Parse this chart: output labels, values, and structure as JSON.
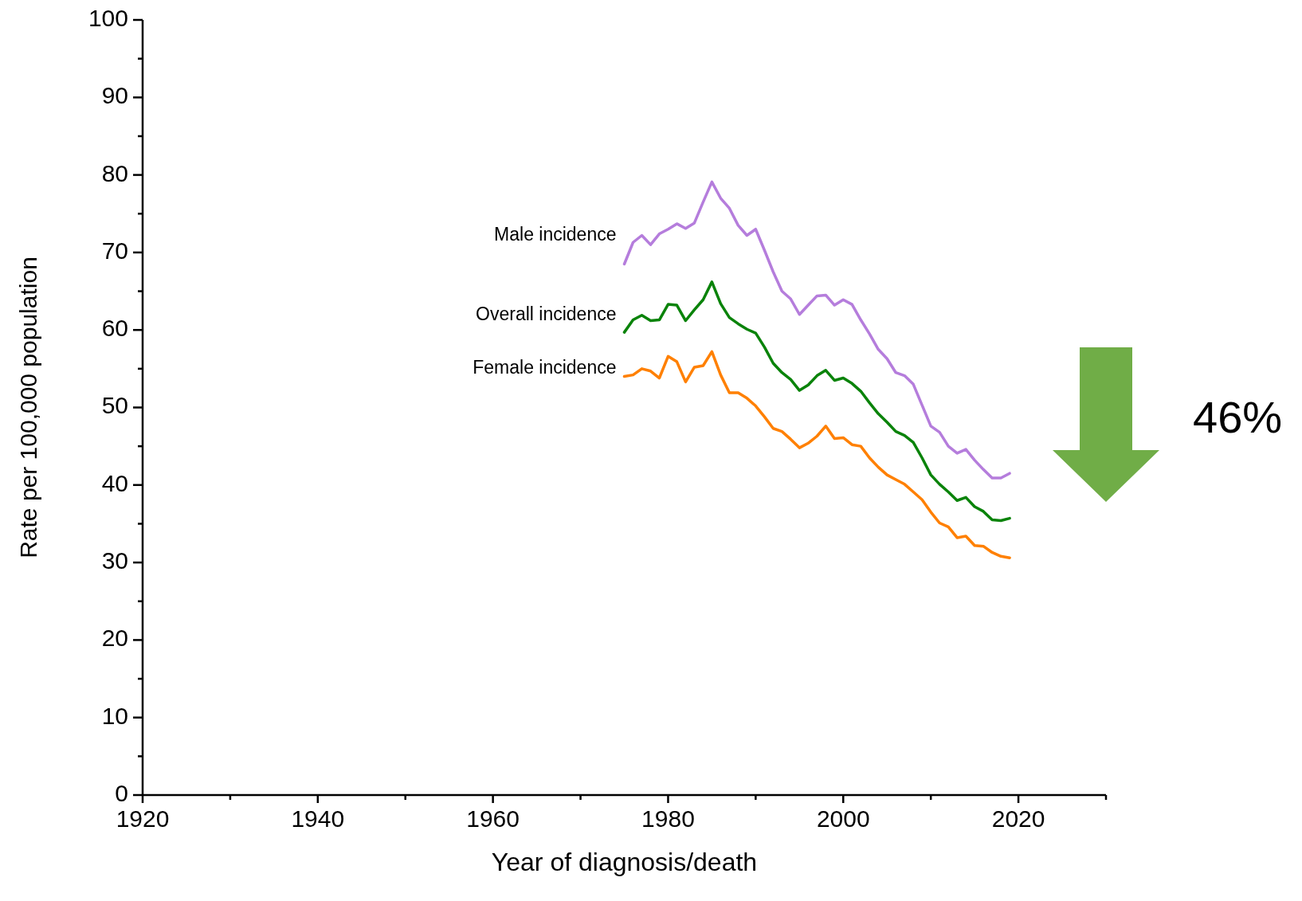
{
  "chart_data": {
    "type": "line",
    "xlabel": "Year of diagnosis/death",
    "ylabel": "Rate per 100,000 population",
    "x": [
      1975,
      1976,
      1977,
      1978,
      1979,
      1980,
      1981,
      1982,
      1983,
      1984,
      1985,
      1986,
      1987,
      1988,
      1989,
      1990,
      1991,
      1992,
      1993,
      1994,
      1995,
      1996,
      1997,
      1998,
      1999,
      2000,
      2001,
      2002,
      2003,
      2004,
      2005,
      2006,
      2007,
      2008,
      2009,
      2010,
      2011,
      2012,
      2013,
      2014,
      2015,
      2016,
      2017,
      2018,
      2019
    ],
    "series": [
      {
        "name": "Male incidence",
        "color": "#b57ddc",
        "values": [
          68.5,
          71.3,
          72.2,
          71,
          72.4,
          73,
          73.7,
          73.1,
          73.8,
          76.5,
          79.1,
          77,
          75.7,
          73.5,
          72.2,
          73,
          70.3,
          67.5,
          65,
          64,
          62,
          63.2,
          64.4,
          64.5,
          63.2,
          63.9,
          63.3,
          61.3,
          59.5,
          57.5,
          56.3,
          54.5,
          54.1,
          53,
          50.3,
          47.6,
          46.8,
          45,
          44.1,
          44.6,
          43.2,
          42,
          40.9,
          40.9,
          41.5
        ]
      },
      {
        "name": "Overall incidence",
        "color": "#0a830a",
        "values": [
          59.7,
          61.3,
          61.9,
          61.2,
          61.3,
          63.3,
          63.2,
          61.2,
          62.6,
          63.9,
          66.2,
          63.4,
          61.6,
          60.8,
          60.1,
          59.6,
          57.8,
          55.7,
          54.5,
          53.6,
          52.2,
          52.9,
          54.1,
          54.8,
          53.5,
          53.8,
          53.1,
          52.1,
          50.6,
          49.2,
          48.1,
          46.9,
          46.4,
          45.5,
          43.5,
          41.3,
          40.1,
          39.1,
          38,
          38.4,
          37.2,
          36.6,
          35.5,
          35.4,
          35.7
        ]
      },
      {
        "name": "Female incidence",
        "color": "#ff8000",
        "values": [
          54,
          54.2,
          55,
          54.7,
          53.8,
          56.6,
          55.9,
          53.3,
          55.2,
          55.4,
          57.2,
          54.2,
          51.9,
          51.9,
          51.2,
          50.2,
          48.8,
          47.3,
          46.9,
          45.9,
          44.8,
          45.4,
          46.3,
          47.6,
          46,
          46.1,
          45.2,
          45,
          43.5,
          42.3,
          41.3,
          40.7,
          40.1,
          39.1,
          38.1,
          36.5,
          35.1,
          34.6,
          33.2,
          33.4,
          32.2,
          32.1,
          31.3,
          30.8,
          30.6
        ]
      }
    ],
    "xlim": [
      1920,
      2030
    ],
    "xticks": [
      1920,
      {
        "value": 1930,
        "label": null
      },
      1940,
      {
        "value": 1950,
        "label": null
      },
      1960,
      {
        "value": 1970,
        "label": null
      },
      1980,
      {
        "value": 1990,
        "label": null
      },
      2000,
      {
        "value": 2010,
        "label": null
      },
      2020,
      {
        "value": 2030,
        "label": null
      }
    ],
    "ylim": [
      0,
      100
    ],
    "yticks": [
      0,
      {
        "value": 5,
        "label": null
      },
      10,
      {
        "value": 15,
        "label": null
      },
      20,
      {
        "value": 25,
        "label": null
      },
      30,
      {
        "value": 35,
        "label": null
      },
      40,
      {
        "value": 45,
        "label": null
      },
      50,
      {
        "value": 55,
        "label": null
      },
      60,
      {
        "value": 65,
        "label": null
      },
      70,
      {
        "value": 75,
        "label": null
      },
      80,
      {
        "value": 85,
        "label": null
      },
      90,
      {
        "value": 95,
        "label": null
      },
      100
    ],
    "annotations": [
      "46%"
    ],
    "grid": false,
    "legend": false,
    "marker": "none",
    "line_style": "solid"
  }
}
